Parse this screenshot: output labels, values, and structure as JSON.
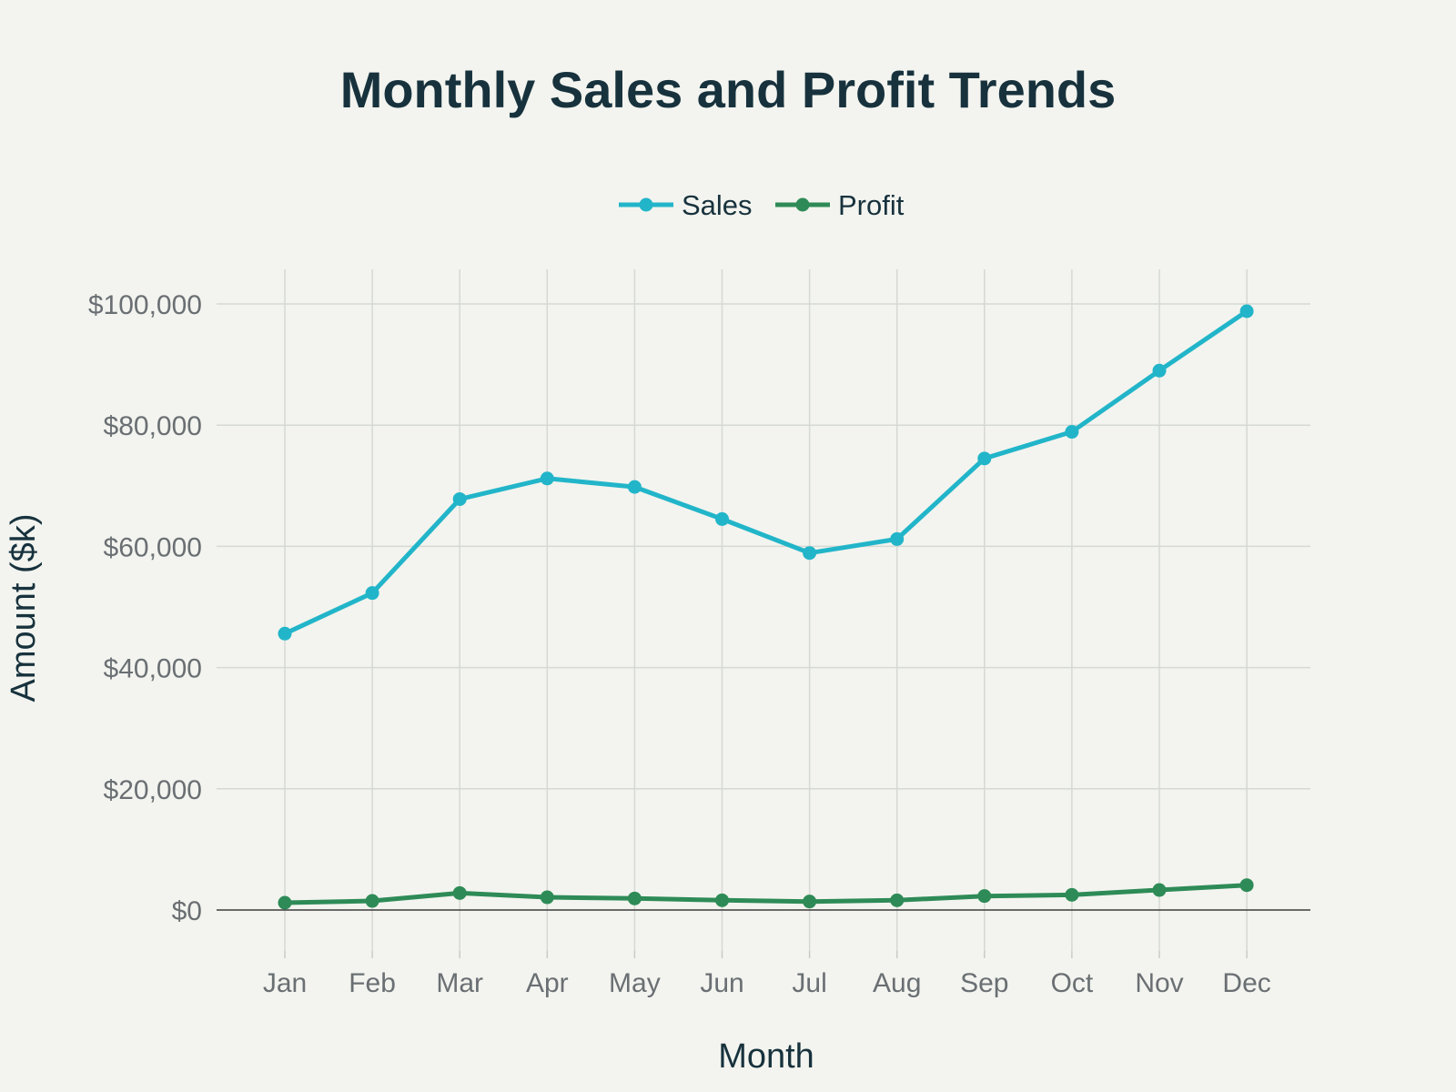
{
  "chart_data": {
    "type": "line",
    "title": "Monthly Sales and Profit Trends",
    "xlabel": "Month",
    "ylabel": "Amount ($k)",
    "categories": [
      "Jan",
      "Feb",
      "Mar",
      "Apr",
      "May",
      "Jun",
      "Jul",
      "Aug",
      "Sep",
      "Oct",
      "Nov",
      "Dec"
    ],
    "ylim": [
      -6000,
      106000
    ],
    "yticks": [
      0,
      20000,
      40000,
      60000,
      80000,
      100000
    ],
    "ytick_labels": [
      "$0",
      "$20,000",
      "$40,000",
      "$60,000",
      "$80,000",
      "$100,000"
    ],
    "grid": true,
    "legend_position": "top-center",
    "series": [
      {
        "name": "Sales",
        "color": "#22b5c9",
        "values": [
          45600,
          52300,
          67800,
          71200,
          69800,
          64500,
          58900,
          61200,
          74500,
          78900,
          89000,
          98800
        ]
      },
      {
        "name": "Profit",
        "color": "#2e8b57",
        "values": [
          1200,
          1500,
          2800,
          2100,
          1900,
          1600,
          1400,
          1600,
          2300,
          2500,
          3300,
          4100
        ]
      }
    ]
  }
}
